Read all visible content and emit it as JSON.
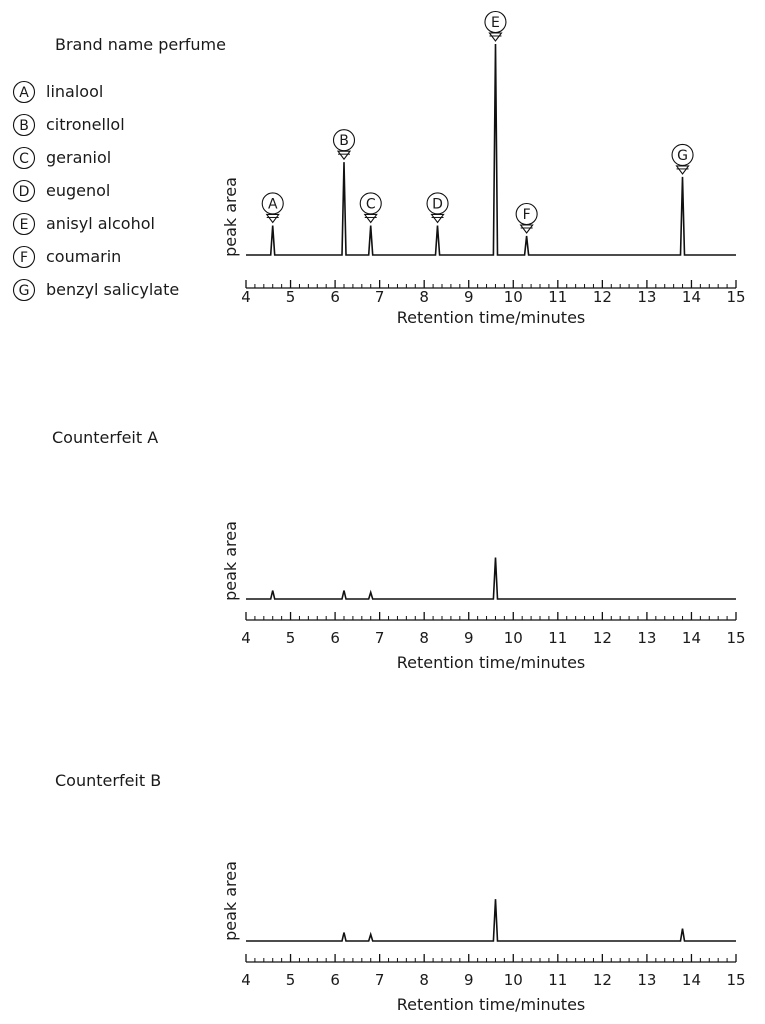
{
  "chart_data": [
    {
      "type": "line",
      "title": "Brand name perfume",
      "xlabel": "Retention time/minutes",
      "ylabel": "peak area",
      "xlim": [
        4,
        15
      ],
      "xticks": [
        4,
        5,
        6,
        7,
        8,
        9,
        10,
        11,
        12,
        13,
        14,
        15
      ],
      "ylim": [
        0,
        100
      ],
      "legend": [
        {
          "key": "A",
          "name": "linalool"
        },
        {
          "key": "B",
          "name": "citronellol"
        },
        {
          "key": "C",
          "name": "geraniol"
        },
        {
          "key": "D",
          "name": "eugenol"
        },
        {
          "key": "E",
          "name": "anisyl alcohol"
        },
        {
          "key": "F",
          "name": "coumarin"
        },
        {
          "key": "G",
          "name": "benzyl salicylate"
        }
      ],
      "peaks": [
        {
          "label": "A",
          "time": 4.6,
          "height": 14
        },
        {
          "label": "B",
          "time": 6.2,
          "height": 44
        },
        {
          "label": "C",
          "time": 6.8,
          "height": 14
        },
        {
          "label": "D",
          "time": 8.3,
          "height": 14
        },
        {
          "label": "E",
          "time": 9.6,
          "height": 100
        },
        {
          "label": "F",
          "time": 10.3,
          "height": 9
        },
        {
          "label": "G",
          "time": 13.8,
          "height": 37
        }
      ]
    },
    {
      "type": "line",
      "title": "Counterfeit A",
      "xlabel": "Retention time/minutes",
      "ylabel": "peak area",
      "xlim": [
        4,
        15
      ],
      "xticks": [
        4,
        5,
        6,
        7,
        8,
        9,
        10,
        11,
        12,
        13,
        14,
        15
      ],
      "ylim": [
        0,
        100
      ],
      "peaks": [
        {
          "time": 4.6,
          "height": 9
        },
        {
          "time": 6.2,
          "height": 9
        },
        {
          "time": 6.8,
          "height": 7
        },
        {
          "time": 9.6,
          "height": 44
        }
      ]
    },
    {
      "type": "line",
      "title": "Counterfeit B",
      "xlabel": "Retention time/minutes",
      "ylabel": "peak area",
      "xlim": [
        4,
        15
      ],
      "xticks": [
        4,
        5,
        6,
        7,
        8,
        9,
        10,
        11,
        12,
        13,
        14,
        15
      ],
      "ylim": [
        0,
        100
      ],
      "peaks": [
        {
          "time": 6.2,
          "height": 9
        },
        {
          "time": 6.8,
          "height": 7
        },
        {
          "time": 9.6,
          "height": 44
        },
        {
          "time": 13.8,
          "height": 13
        }
      ]
    }
  ]
}
